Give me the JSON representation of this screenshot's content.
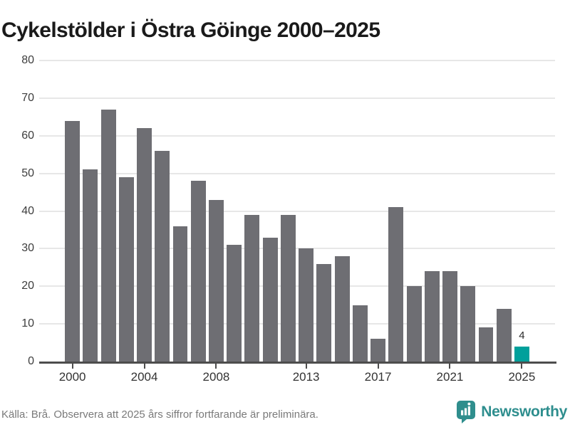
{
  "title": "Cykelstölder i Östra Göinge 2000–2025",
  "footer": {
    "source": "Källa: Brå. Observera att 2025 års siffror fortfarande är preliminära.",
    "brand": "Newsworthy"
  },
  "colors": {
    "bar": "#6e6e73",
    "highlight": "#00a09b",
    "grid": "#e7e7e7",
    "axis": "#4d4d4d",
    "title_text": "#1a1a1a",
    "tick_text": "#3d3d3d",
    "source_text": "#7a7a7a",
    "brand_teal": "#2e8e8e"
  },
  "chart_data": {
    "type": "bar",
    "title": "Cykelstölder i Östra Göinge 2000–2025",
    "categories": [
      2000,
      2001,
      2002,
      2003,
      2004,
      2005,
      2006,
      2007,
      2008,
      2009,
      2010,
      2011,
      2012,
      2013,
      2014,
      2015,
      2016,
      2017,
      2018,
      2019,
      2020,
      2021,
      2022,
      2023,
      2024,
      2025
    ],
    "values": [
      64,
      51,
      67,
      49,
      62,
      56,
      36,
      48,
      43,
      31,
      39,
      33,
      39,
      30,
      26,
      28,
      15,
      6,
      41,
      20,
      24,
      24,
      20,
      9,
      14,
      4
    ],
    "highlight_index": 25,
    "annotation": {
      "index": 25,
      "text": "4"
    },
    "xlabel": "",
    "ylabel": "",
    "ylim": [
      0,
      80
    ],
    "yticks": [
      0,
      10,
      20,
      30,
      40,
      50,
      60,
      70,
      80
    ],
    "xticks": [
      2000,
      2004,
      2008,
      2013,
      2017,
      2021,
      2025
    ],
    "grid": true,
    "legend_position": "none",
    "bar_color": "#6e6e73",
    "highlight_color": "#00a09b"
  }
}
